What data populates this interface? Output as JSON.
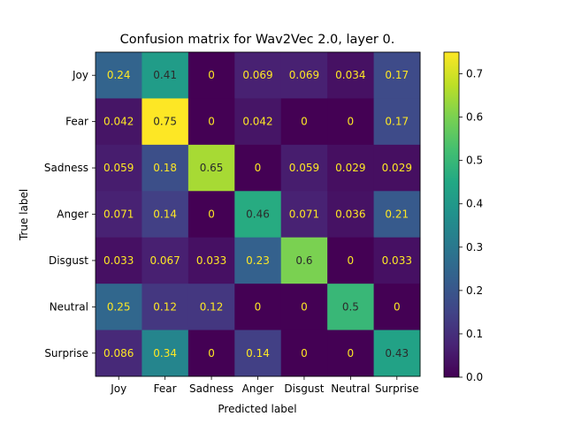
{
  "chart_data": {
    "type": "heatmap",
    "title": "Confusion matrix for Wav2Vec 2.0, layer 0.",
    "xlabel": "Predicted label",
    "ylabel": "True label",
    "x_categories": [
      "Joy",
      "Fear",
      "Sadness",
      "Anger",
      "Disgust",
      "Neutral",
      "Surprise"
    ],
    "y_categories": [
      "Joy",
      "Fear",
      "Sadness",
      "Anger",
      "Disgust",
      "Neutral",
      "Surprise"
    ],
    "values": [
      [
        0.24,
        0.41,
        0,
        0.069,
        0.069,
        0.034,
        0.17
      ],
      [
        0.042,
        0.75,
        0,
        0.042,
        0,
        0,
        0.17
      ],
      [
        0.059,
        0.18,
        0.65,
        0,
        0.059,
        0.029,
        0.029
      ],
      [
        0.071,
        0.14,
        0,
        0.46,
        0.071,
        0.036,
        0.21
      ],
      [
        0.033,
        0.067,
        0.033,
        0.23,
        0.6,
        0,
        0.033
      ],
      [
        0.25,
        0.12,
        0.12,
        0,
        0,
        0.5,
        0
      ],
      [
        0.086,
        0.34,
        0,
        0.14,
        0,
        0,
        0.43
      ]
    ],
    "labels": [
      [
        "0.24",
        "0.41",
        "0",
        "0.069",
        "0.069",
        "0.034",
        "0.17"
      ],
      [
        "0.042",
        "0.75",
        "0",
        "0.042",
        "0",
        "0",
        "0.17"
      ],
      [
        "0.059",
        "0.18",
        "0.65",
        "0",
        "0.059",
        "0.029",
        "0.029"
      ],
      [
        "0.071",
        "0.14",
        "0",
        "0.46",
        "0.071",
        "0.036",
        "0.21"
      ],
      [
        "0.033",
        "0.067",
        "0.033",
        "0.23",
        "0.6",
        "0",
        "0.033"
      ],
      [
        "0.25",
        "0.12",
        "0.12",
        "0",
        "0",
        "0.5",
        "0"
      ],
      [
        "0.086",
        "0.34",
        "0",
        "0.14",
        "0",
        "0",
        "0.43"
      ]
    ],
    "colormap": "viridis",
    "colorbar": {
      "range": [
        0.0,
        0.75
      ],
      "ticks": [
        0.0,
        0.1,
        0.2,
        0.3,
        0.4,
        0.5,
        0.6,
        0.7
      ],
      "tick_labels": [
        "0.0",
        "0.1",
        "0.2",
        "0.3",
        "0.4",
        "0.5",
        "0.6",
        "0.7"
      ]
    },
    "text_colors": {
      "on_dark": "#fde725",
      "on_light": "#2b2b2b"
    }
  }
}
